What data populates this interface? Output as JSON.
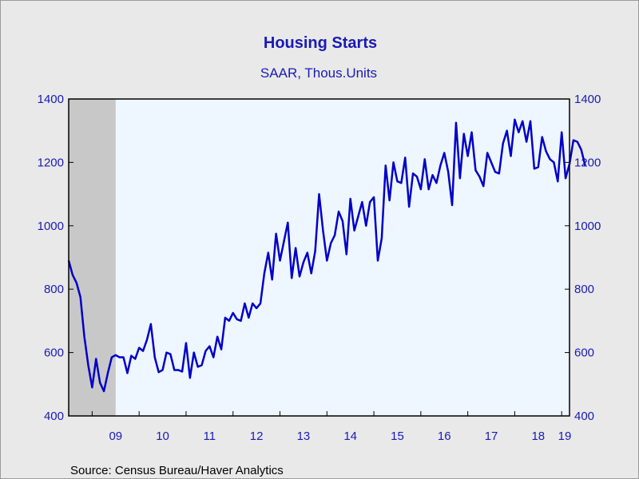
{
  "chart_data": {
    "type": "line",
    "title": "Housing Starts",
    "subtitle": "SAAR, Thous.Units",
    "source": "Source:  Census Bureau/Haver Analytics",
    "ylim": [
      400,
      1400
    ],
    "yticks": [
      400,
      600,
      800,
      1000,
      1200,
      1400
    ],
    "x_start": "2008-07",
    "x_end": "2019-03",
    "x_ticks": [
      {
        "label": "09",
        "year": 2009
      },
      {
        "label": "10",
        "year": 2010
      },
      {
        "label": "11",
        "year": 2011
      },
      {
        "label": "12",
        "year": 2012
      },
      {
        "label": "13",
        "year": 2013
      },
      {
        "label": "14",
        "year": 2014
      },
      {
        "label": "15",
        "year": 2015
      },
      {
        "label": "16",
        "year": 2016
      },
      {
        "label": "17",
        "year": 2017
      },
      {
        "label": "18",
        "year": 2018
      },
      {
        "label": "19",
        "year": 2019
      }
    ],
    "recession": {
      "start": "2008-07",
      "end": "2009-06"
    },
    "grid": false,
    "colors": {
      "line": "#0000c8",
      "plot_bg": "#eef6ff",
      "recession": "#c8c8c8",
      "text": "#1a1ab4"
    },
    "series": [
      {
        "start": "2008-07",
        "values": [
          890,
          845,
          820,
          775,
          650,
          560,
          490,
          580,
          505,
          478,
          535,
          585,
          592,
          585,
          585,
          535,
          590,
          580,
          615,
          605,
          640,
          690,
          585,
          538,
          545,
          600,
          595,
          545,
          545,
          540,
          630,
          520,
          600,
          555,
          560,
          605,
          620,
          585,
          650,
          610,
          710,
          700,
          725,
          705,
          700,
          755,
          710,
          755,
          740,
          755,
          850,
          915,
          830,
          975,
          890,
          950,
          1010,
          835,
          930,
          840,
          885,
          915,
          850,
          920,
          1100,
          985,
          890,
          945,
          970,
          1045,
          1015,
          910,
          1085,
          985,
          1030,
          1075,
          1000,
          1075,
          1090,
          890,
          960,
          1190,
          1080,
          1200,
          1140,
          1135,
          1215,
          1060,
          1165,
          1155,
          1115,
          1210,
          1115,
          1160,
          1135,
          1190,
          1230,
          1170,
          1065,
          1325,
          1150,
          1290,
          1220,
          1295,
          1175,
          1155,
          1125,
          1230,
          1200,
          1170,
          1165,
          1260,
          1300,
          1220,
          1335,
          1295,
          1330,
          1265,
          1330,
          1180,
          1185,
          1280,
          1235,
          1210,
          1200,
          1140,
          1295,
          1150,
          1195,
          1270,
          1265,
          1240,
          1190
        ]
      }
    ]
  }
}
